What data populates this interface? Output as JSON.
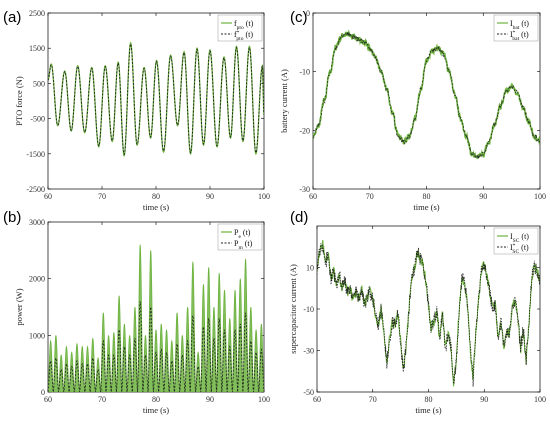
{
  "colors": {
    "green": "#6db33f",
    "dark": "#222222"
  },
  "chart_data": [
    {
      "id": "a",
      "panel_label": "(a)",
      "type": "line",
      "xlabel": "time (s)",
      "ylabel": "PTO force (N)",
      "xlim": [
        60,
        100
      ],
      "ylim": [
        -2500,
        2500
      ],
      "xticks": [
        "60",
        "70",
        "80",
        "90",
        "100"
      ],
      "yticks": [
        "-2500",
        "-1500",
        "-500",
        "500",
        "1500",
        "2500"
      ],
      "legend_position": "top-right",
      "legend": [
        {
          "main": "f",
          "sub": "pto",
          "sup": "",
          "suffix": " (t)",
          "style": "solid"
        },
        {
          "main": "f",
          "sub": "pto",
          "sup": "*",
          "suffix": " (t)",
          "style": "dashed"
        }
      ],
      "series_peaks": {
        "t": [
          60,
          60.6,
          61.8,
          63.1,
          64.3,
          65.5,
          66.8,
          68.1,
          69.4,
          70.6,
          71.9,
          73.0,
          74.1,
          75.3,
          76.5,
          77.8,
          79.0,
          80.1,
          81.4,
          82.7,
          84.0,
          85.2,
          86.4,
          87.6,
          88.8,
          90.0,
          91.3,
          92.6,
          93.8,
          94.9,
          96.1,
          97.3,
          98.5,
          99.7,
          100
        ],
        "y": [
          600,
          1050,
          -700,
          850,
          -850,
          1000,
          -900,
          950,
          -1300,
          1000,
          -1150,
          1100,
          -1550,
          1650,
          -1250,
          950,
          -1050,
          1150,
          -1450,
          1300,
          -700,
          1400,
          -1500,
          1500,
          -1250,
          1450,
          -1300,
          1250,
          -1050,
          1550,
          -1150,
          1550,
          -1500,
          1000,
          -400
        ]
      }
    },
    {
      "id": "b",
      "panel_label": "(b)",
      "type": "line",
      "xlabel": "time (s)",
      "ylabel": "power (W)",
      "xlim": [
        60,
        100
      ],
      "ylim": [
        0,
        3000
      ],
      "xticks": [
        "60",
        "70",
        "80",
        "90",
        "100"
      ],
      "yticks": [
        "0",
        "1000",
        "2000",
        "3000"
      ],
      "legend_position": "top-right",
      "legend": [
        {
          "main": "P",
          "sub": "e",
          "sup": "",
          "suffix": " (t)",
          "style": "solid"
        },
        {
          "main": "P",
          "sub": "m",
          "sup": "",
          "suffix": " (t)",
          "style": "dashed"
        }
      ],
      "hump_peaks_Pe": [
        900,
        1000,
        650,
        800,
        700,
        850,
        800,
        800,
        950,
        600,
        1400,
        1000,
        1050,
        1700,
        1200,
        1000,
        1500,
        2600,
        1000,
        2500,
        1100,
        1200,
        1100,
        900,
        1400,
        1000,
        1500,
        2300,
        700,
        1900,
        2200,
        1500,
        2100,
        1800,
        1300,
        1800,
        2000,
        2350,
        1500,
        1100,
        1200
      ],
      "hump_peaks_Pm": [
        550,
        600,
        400,
        500,
        450,
        550,
        500,
        500,
        600,
        400,
        900,
        650,
        650,
        1100,
        800,
        650,
        950,
        1600,
        650,
        1500,
        700,
        750,
        700,
        550,
        850,
        650,
        900,
        1350,
        450,
        1150,
        1300,
        950,
        1300,
        1100,
        800,
        1100,
        1200,
        1400,
        900,
        700,
        750
      ]
    },
    {
      "id": "c",
      "panel_label": "(c)",
      "type": "line",
      "xlabel": "time (s)",
      "ylabel": "battery current (A)",
      "xlim": [
        60,
        100
      ],
      "ylim": [
        -30,
        0
      ],
      "xticks": [
        "60",
        "70",
        "80",
        "90",
        "100"
      ],
      "yticks": [
        "-30",
        "-20",
        "-10",
        "0"
      ],
      "legend_position": "top-right",
      "legend": [
        {
          "main": "I",
          "sub": "bat",
          "sup": "",
          "suffix": " (t)",
          "style": "solid"
        },
        {
          "main": "I",
          "sub": "bat",
          "sup": "*",
          "suffix": " (t)",
          "style": "dashed"
        }
      ],
      "series": {
        "t": [
          60,
          61,
          62,
          63,
          64,
          65,
          66,
          67,
          68,
          69,
          70,
          71,
          72,
          73,
          74,
          75,
          76,
          77,
          78,
          79,
          80,
          81,
          82,
          83,
          84,
          85,
          86,
          87,
          88,
          89,
          90,
          91,
          92,
          93,
          94,
          95,
          96,
          97,
          98,
          99,
          100
        ],
        "y": [
          -21,
          -19,
          -15,
          -10,
          -6,
          -4,
          -3.5,
          -4,
          -4.5,
          -5,
          -6,
          -7.5,
          -10,
          -13,
          -17,
          -21,
          -22,
          -21,
          -18,
          -13,
          -8,
          -6.5,
          -6,
          -7,
          -10,
          -14,
          -18,
          -21,
          -24,
          -24.5,
          -24,
          -22,
          -19,
          -16,
          -13.5,
          -12.5,
          -13.5,
          -16,
          -18.5,
          -21,
          -22
        ]
      }
    },
    {
      "id": "d",
      "panel_label": "(d)",
      "type": "line",
      "xlabel": "time (s)",
      "ylabel": "supercapacitor current (A)",
      "xlim": [
        60,
        100
      ],
      "ylim": [
        -50,
        30
      ],
      "xticks": [
        "60",
        "70",
        "80",
        "90",
        "100"
      ],
      "yticks": [
        "-50",
        "-30",
        "-10",
        "10"
      ],
      "legend_position": "top-right",
      "legend": [
        {
          "main": "I",
          "sub": "SC",
          "sup": "",
          "suffix": " (t)",
          "style": "solid"
        },
        {
          "main": "I",
          "sub": "SC",
          "sup": "*",
          "suffix": " (t)",
          "style": "dashed"
        }
      ],
      "series": {
        "t": [
          60,
          60.5,
          61,
          61.5,
          62,
          62.5,
          63,
          63.5,
          64,
          64.5,
          65,
          65.5,
          66,
          66.5,
          67,
          67.5,
          68,
          68.5,
          69,
          69.5,
          70,
          70.5,
          71,
          71.5,
          72,
          72.5,
          73,
          73.5,
          74,
          74.5,
          75,
          75.5,
          76,
          76.5,
          77,
          77.5,
          78,
          78.5,
          79,
          79.5,
          80,
          80.5,
          81,
          81.5,
          82,
          82.5,
          83,
          83.5,
          84,
          84.5,
          85,
          85.5,
          86,
          86.5,
          87,
          87.5,
          88,
          88.5,
          89,
          89.5,
          90,
          90.5,
          91,
          91.5,
          92,
          92.5,
          93,
          93.5,
          94,
          94.5,
          95,
          95.5,
          96,
          96.5,
          97,
          97.5,
          98,
          98.5,
          99,
          99.5,
          100
        ],
        "y": [
          10,
          18,
          22,
          12,
          16,
          5,
          8,
          2,
          6,
          0,
          3,
          -3,
          0,
          -6,
          -2,
          -5,
          0,
          -8,
          -4,
          -2,
          -5,
          -12,
          -18,
          -10,
          -22,
          -36,
          -25,
          -16,
          -18,
          -12,
          -26,
          -40,
          -28,
          -10,
          5,
          10,
          18,
          14,
          12,
          3,
          -8,
          -20,
          -16,
          -10,
          -25,
          -12,
          -30,
          -22,
          -28,
          -45,
          -35,
          -10,
          5,
          2,
          -8,
          -30,
          -44,
          -20,
          -5,
          8,
          12,
          5,
          -2,
          -10,
          -8,
          -25,
          -15,
          -28,
          -20,
          -22,
          -10,
          -5,
          -12,
          -30,
          -20,
          -35,
          -18,
          5,
          10,
          8,
          4
        ]
      }
    }
  ]
}
